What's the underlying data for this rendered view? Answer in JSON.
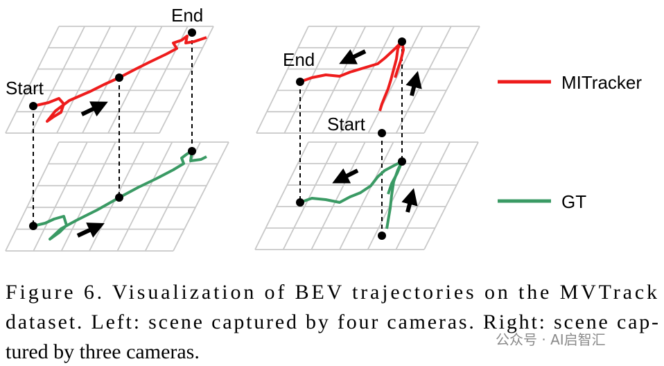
{
  "figure": {
    "left": {
      "start_label": "Start",
      "end_label": "End"
    },
    "right": {
      "start_label": "Start",
      "end_label": "End"
    },
    "legend": [
      "MITracker",
      "GT"
    ],
    "caption_lines": [
      "Figure 6.  Visualization of BEV trajectories on the MVTrack",
      "dataset. Left: scene captured by four cameras. Right: scene cap-",
      "tured by three cameras."
    ],
    "watermark": "公众号 · AI启智汇"
  }
}
